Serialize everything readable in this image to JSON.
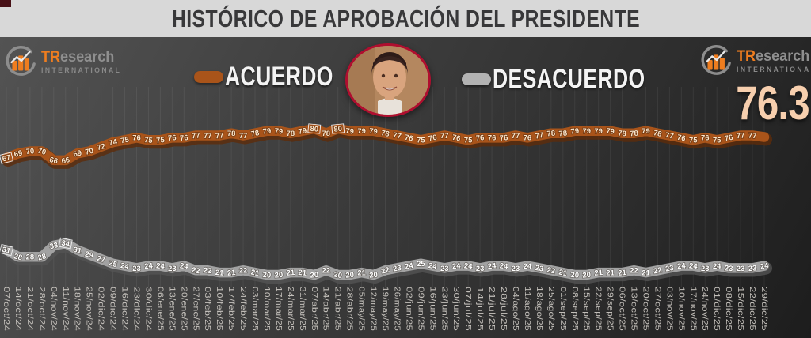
{
  "header": {
    "title": "HISTÓRICO DE APROBACIÓN DEL PRESIDENTE"
  },
  "brand": {
    "name_accent": "TR",
    "name_rest": "esearch",
    "subtitle": "INTERNATIONAL"
  },
  "legend": {
    "acuerdo": "ACUERDO",
    "desacuerdo": "DESACUERDO"
  },
  "headline": {
    "value": "76.3",
    "color": "#f7cfae"
  },
  "portrait": {
    "description": "circular photo of the president",
    "border_color": "#b00e2f"
  },
  "chart_data": {
    "type": "line",
    "title": "HISTÓRICO DE APROBACIÓN DEL PRESIDENTE",
    "legend_position": "top-center",
    "grid": "vertical-per-point",
    "x_tick_rotation_deg": 90,
    "x": [
      "07/oct/24",
      "14/oct/24",
      "21/oct/24",
      "28/oct/24",
      "04/nov/24",
      "11/nov/24",
      "18/nov/24",
      "25/nov/24",
      "02/dic/24",
      "09/dic/24",
      "16/dic/24",
      "23/dic/24",
      "30/dic/24",
      "06/ene/25",
      "13/ene/25",
      "20/ene/25",
      "27/ene/25",
      "03/feb/25",
      "10/feb/25",
      "17/feb/25",
      "24/feb/25",
      "03/mar/25",
      "10/mar/25",
      "17/mar/25",
      "24/mar/25",
      "31/mar/25",
      "07/abr/25",
      "14/abr/25",
      "21/abr/25",
      "28/abr/25",
      "05/may/25",
      "12/may/25",
      "19/may/25",
      "26/may/25",
      "02/jun/25",
      "09/jun/25",
      "16/jun/25",
      "23/jun/25",
      "30/jun/25",
      "07/jul/25",
      "14/jul/25",
      "21/jul/25",
      "28/jul/25",
      "04/ago/25",
      "11/ago/25",
      "18/ago/25",
      "25/ago/25",
      "01/sep/25",
      "08/sep/25",
      "15/sep/25",
      "22/sep/25",
      "29/sep/25",
      "06/oct/25",
      "13/oct/25",
      "20/oct/25",
      "27/oct/25",
      "03/nov/25",
      "10/nov/25",
      "17/nov/25",
      "24/nov/25",
      "01/dic/25",
      "08/dic/25",
      "15/dic/25",
      "22/dic/25",
      "29/dic/25"
    ],
    "series": [
      {
        "name": "ACUERDO",
        "color": "#a9541a",
        "edge_color": "#5e2c0a",
        "label_color": "#fce8cf",
        "values": [
          67,
          69,
          70,
          70,
          66,
          66,
          69,
          70,
          72,
          74,
          75,
          76,
          75,
          75,
          76,
          76,
          77,
          77,
          77,
          78,
          77,
          78,
          79,
          79,
          78,
          79,
          80,
          78,
          80,
          79,
          79,
          79,
          78,
          77,
          76,
          75,
          76,
          77,
          76,
          75,
          76,
          76,
          76,
          77,
          76,
          77,
          78,
          78,
          79,
          79,
          79,
          79,
          78,
          78,
          79,
          78,
          77,
          76,
          75,
          76,
          75,
          76,
          77,
          77,
          76.3
        ],
        "boxed_label_indices": [
          0,
          26,
          28
        ],
        "last_label_hidden": true,
        "latest_value_headline": "76.3"
      },
      {
        "name": "DESACUERDO",
        "color": "#a2a2a2",
        "edge_color": "#545454",
        "label_color": "#ffffff",
        "values": [
          31,
          28,
          28,
          28,
          33,
          34,
          31,
          29,
          27,
          25,
          24,
          23,
          24,
          24,
          23,
          24,
          22,
          22,
          21,
          21,
          22,
          21,
          20,
          20,
          21,
          21,
          20,
          22,
          20,
          20,
          21,
          20,
          22,
          23,
          24,
          25,
          24,
          23,
          24,
          24,
          23,
          24,
          24,
          23,
          24,
          23,
          22,
          21,
          20,
          20,
          21,
          21,
          21,
          22,
          21,
          22,
          23,
          24,
          24,
          23,
          24,
          23,
          23,
          23,
          24
        ],
        "boxed_label_indices": [
          0,
          5
        ]
      }
    ]
  }
}
